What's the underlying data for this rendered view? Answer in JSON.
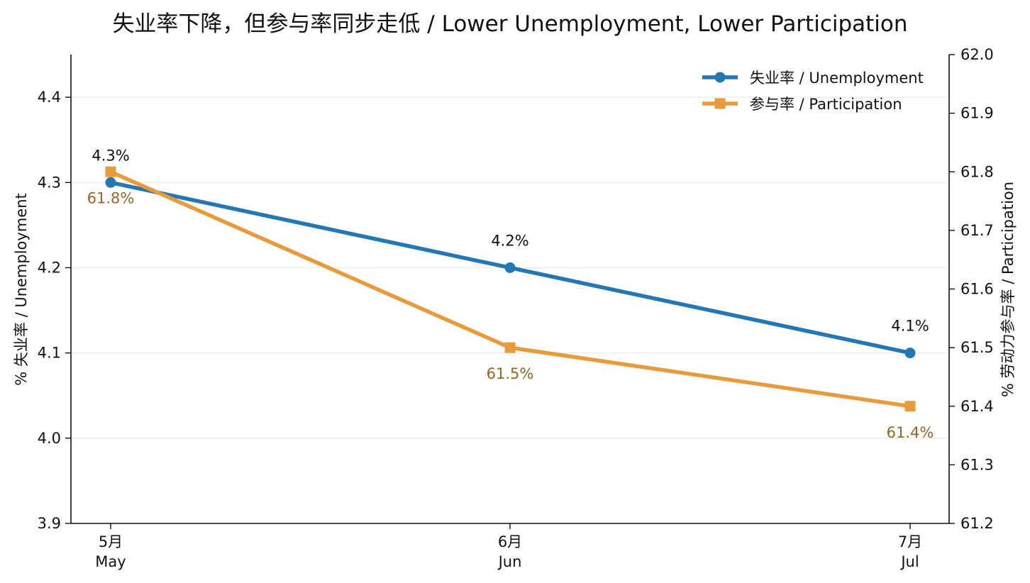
{
  "chart_data": {
    "type": "line",
    "title": "失业率下降，但参与率同步走低 / Lower Unemployment, Lower Participation",
    "categories": [
      {
        "zh": "5月",
        "en": "May"
      },
      {
        "zh": "6月",
        "en": "Jun"
      },
      {
        "zh": "7月",
        "en": "Jul"
      }
    ],
    "y_left": {
      "label": "% 失业率 / Unemployment",
      "range": [
        3.9,
        4.45
      ],
      "ticks": [
        "3.9",
        "4.0",
        "4.1",
        "4.2",
        "4.3",
        "4.4"
      ]
    },
    "y_right": {
      "label": "% 劳动力参与率 / Participation",
      "range": [
        61.2,
        62.0
      ],
      "ticks": [
        "61.2",
        "61.3",
        "61.4",
        "61.5",
        "61.6",
        "61.7",
        "61.8",
        "61.9",
        "62.0"
      ]
    },
    "series": [
      {
        "name": "失业率 / Unemployment",
        "axis": "left",
        "marker": "circle",
        "color": "#2477b5",
        "values": [
          4.3,
          4.2,
          4.1
        ],
        "labels": [
          "4.3%",
          "4.2%",
          "4.1%"
        ],
        "label_color": "#111111"
      },
      {
        "name": "参与率 / Participation",
        "axis": "right",
        "marker": "square",
        "color": "#e89b3c",
        "values": [
          61.8,
          61.5,
          61.4
        ],
        "labels": [
          "61.8%",
          "61.5%",
          "61.4%"
        ],
        "label_color": "#9a6524"
      }
    ],
    "grid": "horizontal",
    "legend_position": "top-right"
  }
}
